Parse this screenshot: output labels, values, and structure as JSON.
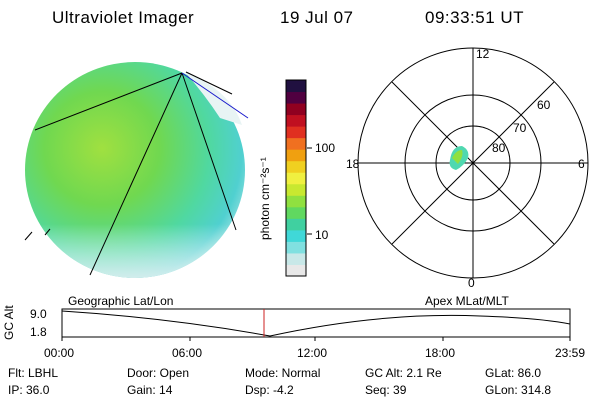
{
  "header": {
    "title": "Ultraviolet Imager",
    "date": "19 Jul 07",
    "time": "09:33:51 UT"
  },
  "colorbar": {
    "unit_label": "photon cm⁻²s⁻¹",
    "tick_100": "100",
    "tick_10": "10",
    "colors": [
      "#e8e8e8",
      "#c8e8e8",
      "#80e0e0",
      "#40d8d8",
      "#40d0a0",
      "#60d860",
      "#90e040",
      "#c8e830",
      "#f0f040",
      "#f0d020",
      "#f0a010",
      "#f07020",
      "#e03020",
      "#c01020",
      "#900020",
      "#500040",
      "#201040"
    ]
  },
  "polar": {
    "lat_labels": [
      "60",
      "70",
      "80"
    ],
    "mlt_labels": {
      "top": "12",
      "left": "18",
      "right": "6",
      "bottom": "0"
    }
  },
  "timeline": {
    "y_label": "GC Alt",
    "y_ticks": [
      "9.0",
      "1.8"
    ],
    "left_caption": "Geographic Lat/Lon",
    "right_caption": "Apex MLat/MLT",
    "time_ticks": [
      "00:00",
      "06:00",
      "12:00",
      "18:00",
      "23:59"
    ],
    "marker_color": "#cc2020"
  },
  "status": {
    "flt": "Flt: LBHL",
    "ip": "IP: 36.0",
    "door": "Door: Open",
    "gain": "Gain: 14",
    "mode": "Mode: Normal",
    "dsp": "Dsp:   -4.2",
    "gcalt": "GC Alt: 2.1 Re",
    "seq": "Seq: 39",
    "glat": "GLat:  86.0",
    "glon": "GLon: 314.8"
  }
}
